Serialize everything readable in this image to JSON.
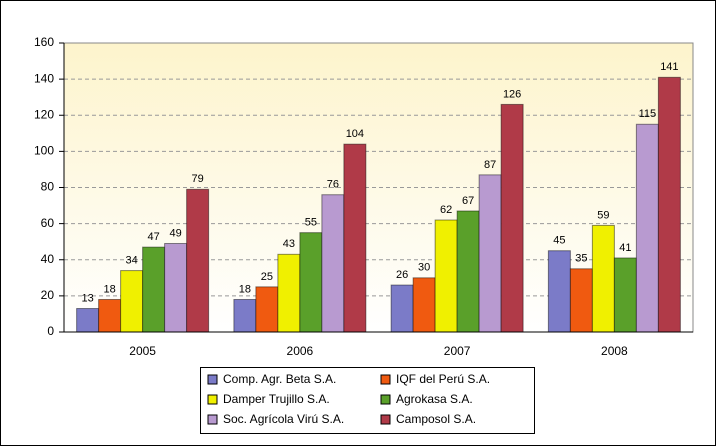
{
  "chart_data": {
    "type": "bar",
    "categories": [
      "2005",
      "2006",
      "2007",
      "2008"
    ],
    "series": [
      {
        "name": "Comp. Agr. Beta S.A.",
        "color": "#7b7bc8",
        "values": [
          13,
          18,
          26,
          45
        ]
      },
      {
        "name": "IQF del Perú S.A.",
        "color": "#f05a10",
        "values": [
          18,
          25,
          30,
          35
        ]
      },
      {
        "name": "Damper Trujillo S.A.",
        "color": "#f0f000",
        "values": [
          34,
          43,
          62,
          59
        ]
      },
      {
        "name": "Agrokasa S.A.",
        "color": "#5aa02a",
        "values": [
          47,
          55,
          67,
          41
        ]
      },
      {
        "name": "Soc. Agrícola Virú S.A.",
        "color": "#b89ad0",
        "values": [
          49,
          76,
          87,
          115
        ]
      },
      {
        "name": "Camposol S.A.",
        "color": "#b03a48",
        "values": [
          79,
          104,
          126,
          141
        ]
      }
    ],
    "ylim": [
      0,
      160
    ],
    "yticks": [
      0,
      20,
      40,
      60,
      80,
      100,
      120,
      140,
      160
    ],
    "grid": true
  }
}
